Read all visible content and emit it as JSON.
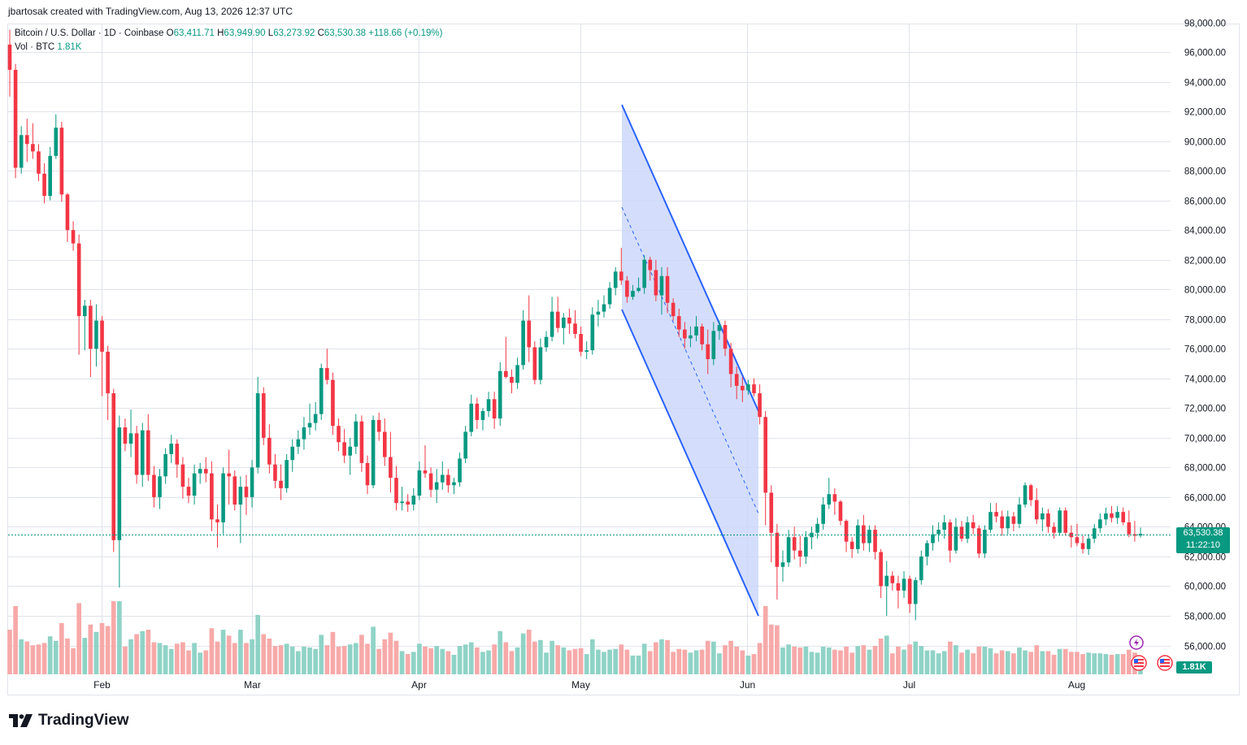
{
  "header": {
    "author": "jbartosak created with TradingView.com, Aug 13, 2026 12:37 UTC"
  },
  "legend": {
    "symbol": "Bitcoin / U.S. Dollar · 1D · Coinbase",
    "open_label": "O",
    "open_value": "63,411.71",
    "high_label": "H",
    "high_value": "63,949.90",
    "low_label": "L",
    "low_value": "63,273.92",
    "close_label": "C",
    "close_value": "63,530.38",
    "change": "+118.66 (+0.19%)",
    "volume_label": "Vol · BTC",
    "volume_value": "1.81K"
  },
  "price_tag": {
    "price": "63,530.38",
    "countdown": "11:22:10"
  },
  "volume_tag": "1.81K",
  "footer": {
    "brand": "TradingView"
  },
  "colors": {
    "up": "#089981",
    "down": "#f23645",
    "volume_up": "#8fd3c6",
    "volume_down": "#f7a9a9",
    "channel_line": "#2962ff",
    "channel_fill": "#c9d6fb",
    "grid": "#e0e3eb",
    "axis_text": "#131722"
  },
  "icons": [
    "tradingview-logo-icon",
    "flash-event-icon",
    "us-flag-icon"
  ],
  "chart_data": {
    "type": "candlestick",
    "symbol": "BTCUSD",
    "timeframe": "1D",
    "y_ticks": [
      56000,
      58000,
      60000,
      62000,
      64000,
      66000,
      68000,
      70000,
      72000,
      74000,
      76000,
      78000,
      80000,
      82000,
      84000,
      86000,
      88000,
      90000,
      92000,
      94000,
      96000,
      98000
    ],
    "y_tick_labels": [
      "56,000.00",
      "58,000.00",
      "60,000.00",
      "62,000.00",
      "64,000.00",
      "66,000.00",
      "68,000.00",
      "70,000.00",
      "72,000.00",
      "74,000.00",
      "76,000.00",
      "78,000.00",
      "80,000.00",
      "82,000.00",
      "84,000.00",
      "86,000.00",
      "88,000.00",
      "90,000.00",
      "92,000.00",
      "94,000.00",
      "96,000.00",
      "98,000.00"
    ],
    "x_ticks": [
      "Feb",
      "Mar",
      "Apr",
      "May",
      "Jun",
      "Jul",
      "Aug"
    ],
    "x_tick_dates": [
      "2026-02-01",
      "2026-03-01",
      "2026-04-01",
      "2026-05-01",
      "2026-06-01",
      "2026-07-01",
      "2026-08-01"
    ],
    "first_date": "2026-01-15",
    "last_date": "2026-08-13",
    "ylim": [
      55500,
      98500
    ],
    "last_price": 63530.38,
    "candles": [
      [
        96500,
        97500,
        93000,
        94800
      ],
      [
        94800,
        95200,
        87500,
        88200
      ],
      [
        88200,
        91000,
        87800,
        90400
      ],
      [
        90400,
        91500,
        88600,
        89800
      ],
      [
        89800,
        91200,
        88800,
        89300
      ],
      [
        89300,
        89800,
        87300,
        87800
      ],
      [
        87800,
        88500,
        85800,
        86300
      ],
      [
        86300,
        89600,
        86000,
        89000
      ],
      [
        89000,
        91800,
        88800,
        90900
      ],
      [
        90900,
        91300,
        85900,
        86400
      ],
      [
        86400,
        86500,
        83200,
        84000
      ],
      [
        84000,
        84600,
        82600,
        83100
      ],
      [
        83100,
        83700,
        75600,
        78200
      ],
      [
        78200,
        79300,
        75900,
        78900
      ],
      [
        78900,
        79300,
        74100,
        76000
      ],
      [
        76000,
        79000,
        74800,
        77900
      ],
      [
        77900,
        78200,
        72800,
        75800
      ],
      [
        75800,
        76200,
        71200,
        73000
      ],
      [
        73000,
        73300,
        62300,
        63100
      ],
      [
        63100,
        71500,
        59900,
        70700
      ],
      [
        70700,
        71300,
        69100,
        69600
      ],
      [
        69600,
        71900,
        68700,
        70300
      ],
      [
        70300,
        70800,
        66900,
        67500
      ],
      [
        67500,
        71000,
        66700,
        70500
      ],
      [
        70500,
        71600,
        67100,
        67500
      ],
      [
        67500,
        68100,
        65300,
        66000
      ],
      [
        66000,
        67900,
        65200,
        67400
      ],
      [
        67400,
        69300,
        66900,
        68900
      ],
      [
        68900,
        70200,
        68300,
        69600
      ],
      [
        69600,
        69900,
        67300,
        68200
      ],
      [
        68200,
        68700,
        65900,
        66700
      ],
      [
        66700,
        67300,
        65600,
        66100
      ],
      [
        66100,
        68200,
        65500,
        67600
      ],
      [
        67600,
        68300,
        66900,
        67900
      ],
      [
        67900,
        68700,
        67000,
        67600
      ],
      [
        67600,
        68400,
        63700,
        64500
      ],
      [
        64500,
        65500,
        62600,
        64300
      ],
      [
        64300,
        68000,
        63500,
        67600
      ],
      [
        67600,
        69200,
        65500,
        67400
      ],
      [
        67400,
        67800,
        65100,
        65500
      ],
      [
        65500,
        67400,
        62900,
        66700
      ],
      [
        66700,
        67500,
        64800,
        66000
      ],
      [
        66000,
        68500,
        65300,
        68000
      ],
      [
        68000,
        74100,
        67600,
        73000
      ],
      [
        73000,
        73400,
        69500,
        70000
      ],
      [
        70000,
        70900,
        67600,
        68200
      ],
      [
        68200,
        68900,
        66600,
        67100
      ],
      [
        67100,
        68200,
        65800,
        66600
      ],
      [
        66600,
        68900,
        66300,
        68500
      ],
      [
        68500,
        69900,
        67700,
        69400
      ],
      [
        69400,
        70500,
        68900,
        69900
      ],
      [
        69900,
        71400,
        69200,
        70700
      ],
      [
        70700,
        72300,
        70200,
        71000
      ],
      [
        71000,
        72400,
        70500,
        71600
      ],
      [
        71600,
        75000,
        71200,
        74700
      ],
      [
        74700,
        76000,
        73600,
        73900
      ],
      [
        73900,
        74400,
        70200,
        70800
      ],
      [
        70800,
        71300,
        69100,
        69700
      ],
      [
        69700,
        70600,
        68300,
        68800
      ],
      [
        68800,
        70000,
        67500,
        69400
      ],
      [
        69400,
        71600,
        68900,
        71100
      ],
      [
        71100,
        71500,
        67700,
        68300
      ],
      [
        68300,
        68800,
        66200,
        66800
      ],
      [
        66800,
        71500,
        66600,
        71200
      ],
      [
        71200,
        71700,
        69800,
        70400
      ],
      [
        70400,
        71300,
        68100,
        68700
      ],
      [
        68700,
        70400,
        66300,
        67300
      ],
      [
        67300,
        68100,
        65100,
        65600
      ],
      [
        65600,
        66700,
        65100,
        65700
      ],
      [
        65700,
        66200,
        65000,
        65500
      ],
      [
        65500,
        66600,
        65100,
        66100
      ],
      [
        66100,
        68400,
        65800,
        67800
      ],
      [
        67800,
        69500,
        67300,
        67600
      ],
      [
        67600,
        68000,
        66000,
        66500
      ],
      [
        66500,
        67900,
        65600,
        67000
      ],
      [
        67000,
        68400,
        66500,
        67500
      ],
      [
        67500,
        67900,
        66300,
        66800
      ],
      [
        66800,
        67300,
        66200,
        67000
      ],
      [
        67000,
        69000,
        66700,
        68600
      ],
      [
        68600,
        70800,
        68300,
        70400
      ],
      [
        70400,
        72900,
        70100,
        72300
      ],
      [
        72300,
        72700,
        70600,
        71200
      ],
      [
        71200,
        72000,
        70500,
        71800
      ],
      [
        71800,
        73100,
        71400,
        72600
      ],
      [
        72600,
        73100,
        70600,
        71300
      ],
      [
        71300,
        75100,
        70800,
        74500
      ],
      [
        74500,
        76800,
        74000,
        74100
      ],
      [
        74100,
        74600,
        73000,
        73700
      ],
      [
        73700,
        75400,
        73300,
        74900
      ],
      [
        74900,
        78600,
        74600,
        77900
      ],
      [
        77900,
        79600,
        75100,
        76100
      ],
      [
        76100,
        76500,
        73600,
        73900
      ],
      [
        73900,
        76700,
        73600,
        76100
      ],
      [
        76100,
        77200,
        75800,
        76800
      ],
      [
        76800,
        79500,
        76500,
        78500
      ],
      [
        78500,
        79500,
        77100,
        77400
      ],
      [
        77400,
        78400,
        76300,
        78100
      ],
      [
        78100,
        78700,
        77000,
        77700
      ],
      [
        77700,
        78600,
        76700,
        77000
      ],
      [
        77000,
        77500,
        75500,
        75800
      ],
      [
        75800,
        76500,
        75300,
        75900
      ],
      [
        75900,
        78800,
        75600,
        78300
      ],
      [
        78300,
        79300,
        77500,
        78500
      ],
      [
        78500,
        79600,
        78100,
        79000
      ],
      [
        79000,
        80500,
        78700,
        80100
      ],
      [
        80100,
        81500,
        79600,
        81200
      ],
      [
        81200,
        82800,
        80300,
        80600
      ],
      [
        80600,
        80900,
        79100,
        79500
      ],
      [
        79500,
        80300,
        79300,
        79900
      ],
      [
        79900,
        80800,
        79800,
        80100
      ],
      [
        80100,
        82300,
        79700,
        82000
      ],
      [
        82000,
        82200,
        80600,
        81300
      ],
      [
        81300,
        82000,
        79200,
        79600
      ],
      [
        79600,
        81500,
        78300,
        80900
      ],
      [
        80900,
        81500,
        78400,
        79100
      ],
      [
        79100,
        79400,
        77900,
        78200
      ],
      [
        78200,
        78700,
        76800,
        77300
      ],
      [
        77300,
        77800,
        76000,
        76700
      ],
      [
        76700,
        77500,
        76100,
        76900
      ],
      [
        76900,
        78200,
        76500,
        77500
      ],
      [
        77500,
        77700,
        75900,
        76300
      ],
      [
        76300,
        77300,
        74300,
        75300
      ],
      [
        75300,
        77800,
        74900,
        77200
      ],
      [
        77200,
        77900,
        76600,
        77600
      ],
      [
        77600,
        77900,
        75500,
        76000
      ],
      [
        76000,
        76400,
        73400,
        74300
      ],
      [
        74300,
        74800,
        72600,
        73500
      ],
      [
        73500,
        74100,
        72400,
        73200
      ],
      [
        73200,
        73900,
        72900,
        73600
      ],
      [
        73600,
        74000,
        72800,
        73000
      ],
      [
        73000,
        73600,
        70900,
        71400
      ],
      [
        71400,
        71800,
        64100,
        66300
      ],
      [
        66300,
        66800,
        61600,
        63600
      ],
      [
        63600,
        64200,
        59100,
        61300
      ],
      [
        61300,
        62400,
        60300,
        61600
      ],
      [
        61600,
        63800,
        61300,
        63300
      ],
      [
        63300,
        64000,
        61800,
        62400
      ],
      [
        62400,
        63400,
        61300,
        62000
      ],
      [
        62000,
        63700,
        61500,
        63300
      ],
      [
        63300,
        64000,
        62500,
        63600
      ],
      [
        63600,
        64600,
        63200,
        64200
      ],
      [
        64200,
        66000,
        63800,
        65500
      ],
      [
        65500,
        67300,
        65200,
        66200
      ],
      [
        66200,
        66600,
        64800,
        65700
      ],
      [
        65700,
        65800,
        64100,
        64400
      ],
      [
        64400,
        64500,
        62300,
        63000
      ],
      [
        63000,
        63300,
        61900,
        62500
      ],
      [
        62500,
        64500,
        62200,
        64100
      ],
      [
        64100,
        64800,
        62400,
        62900
      ],
      [
        62900,
        64100,
        62300,
        63800
      ],
      [
        63800,
        64100,
        61800,
        62300
      ],
      [
        62300,
        62500,
        59200,
        60000
      ],
      [
        60000,
        61700,
        58000,
        60700
      ],
      [
        60700,
        61000,
        59700,
        60200
      ],
      [
        60200,
        60700,
        58500,
        59700
      ],
      [
        59700,
        61000,
        59200,
        60500
      ],
      [
        60500,
        60700,
        58200,
        58800
      ],
      [
        58800,
        60600,
        57700,
        60400
      ],
      [
        60400,
        62400,
        60100,
        62000
      ],
      [
        62000,
        63100,
        61400,
        62900
      ],
      [
        62900,
        64100,
        62400,
        63500
      ],
      [
        63500,
        64300,
        63000,
        63800
      ],
      [
        63800,
        64800,
        63200,
        64300
      ],
      [
        64300,
        64500,
        61600,
        62400
      ],
      [
        62400,
        64600,
        62200,
        64000
      ],
      [
        64000,
        64400,
        63000,
        63200
      ],
      [
        63200,
        64700,
        62900,
        64300
      ],
      [
        64300,
        64800,
        63500,
        63900
      ],
      [
        63900,
        64100,
        61900,
        62200
      ],
      [
        62200,
        64100,
        61900,
        63800
      ],
      [
        63800,
        65600,
        63600,
        65000
      ],
      [
        65000,
        65600,
        64300,
        64700
      ],
      [
        64700,
        65100,
        63400,
        63900
      ],
      [
        63900,
        65100,
        63500,
        64700
      ],
      [
        64700,
        65000,
        63700,
        64200
      ],
      [
        64200,
        66000,
        63900,
        65500
      ],
      [
        65500,
        67000,
        65300,
        66800
      ],
      [
        66800,
        66900,
        65400,
        65800
      ],
      [
        65800,
        66600,
        64200,
        64500
      ],
      [
        64500,
        65300,
        63700,
        64900
      ],
      [
        64900,
        65200,
        63600,
        64000
      ],
      [
        64000,
        64300,
        63200,
        63600
      ],
      [
        63600,
        65300,
        63400,
        65100
      ],
      [
        65100,
        65300,
        63400,
        63600
      ],
      [
        63600,
        64100,
        62600,
        63300
      ],
      [
        63300,
        64200,
        62700,
        62900
      ],
      [
        62900,
        63400,
        62200,
        62500
      ],
      [
        62500,
        63500,
        62100,
        63200
      ],
      [
        63200,
        64200,
        62900,
        63900
      ],
      [
        63900,
        64900,
        63600,
        64500
      ],
      [
        64500,
        65300,
        64100,
        64900
      ],
      [
        64900,
        65400,
        64300,
        64600
      ],
      [
        64600,
        65400,
        64200,
        65000
      ],
      [
        65000,
        65300,
        64100,
        64300
      ],
      [
        64300,
        65100,
        63300,
        63500
      ],
      [
        63500,
        64400,
        63000,
        63400
      ],
      [
        63411.71,
        63949.9,
        63273.92,
        63530.38
      ]
    ]
  }
}
